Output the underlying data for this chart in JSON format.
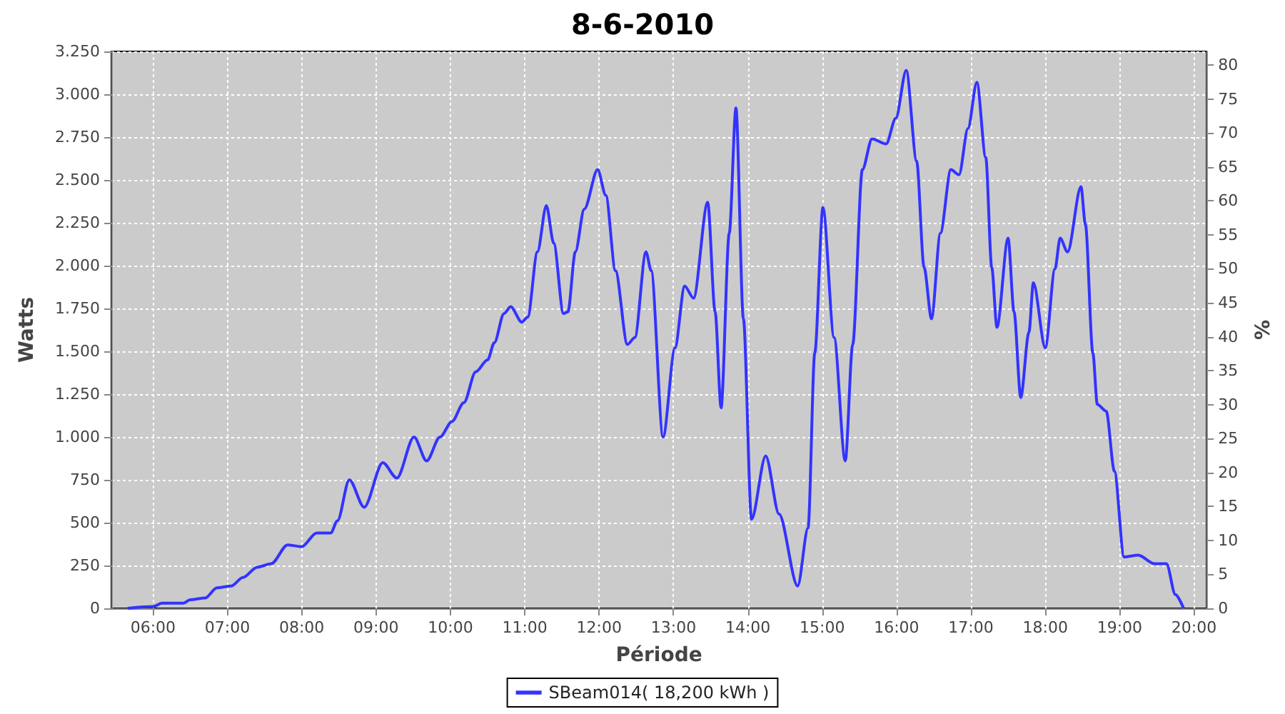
{
  "chart_data": {
    "type": "line",
    "title": "8-6-2010",
    "xlabel": "Période",
    "ylabel": "Watts",
    "y2label": "%",
    "xlim": [
      5.44,
      20.17
    ],
    "xticks": [
      {
        "value": 6,
        "label": "06:00"
      },
      {
        "value": 7,
        "label": "07:00"
      },
      {
        "value": 8,
        "label": "08:00"
      },
      {
        "value": 9,
        "label": "09:00"
      },
      {
        "value": 10,
        "label": "10:00"
      },
      {
        "value": 11,
        "label": "11:00"
      },
      {
        "value": 12,
        "label": "12:00"
      },
      {
        "value": 13,
        "label": "13:00"
      },
      {
        "value": 14,
        "label": "14:00"
      },
      {
        "value": 15,
        "label": "15:00"
      },
      {
        "value": 16,
        "label": "16:00"
      },
      {
        "value": 17,
        "label": "17:00"
      },
      {
        "value": 18,
        "label": "18:00"
      },
      {
        "value": 19,
        "label": "19:00"
      },
      {
        "value": 20,
        "label": "20:00"
      }
    ],
    "ylim": [
      0,
      3250
    ],
    "yticks": [
      0,
      250,
      500,
      750,
      {
        "value": 1000,
        "label": "1.000"
      },
      {
        "value": 1250,
        "label": "1.250"
      },
      {
        "value": 1500,
        "label": "1.500"
      },
      {
        "value": 1750,
        "label": "1.750"
      },
      {
        "value": 2000,
        "label": "2.000"
      },
      {
        "value": 2250,
        "label": "2.250"
      },
      {
        "value": 2500,
        "label": "2.500"
      },
      {
        "value": 2750,
        "label": "2.750"
      },
      {
        "value": 3000,
        "label": "3.000"
      },
      {
        "value": 3250,
        "label": "3.250"
      }
    ],
    "y2lim": [
      0,
      82
    ],
    "y2ticks": [
      0,
      5,
      10,
      15,
      20,
      25,
      30,
      35,
      40,
      45,
      50,
      55,
      60,
      65,
      70,
      75,
      80
    ],
    "grid": true,
    "legend": "bottom",
    "marker": "none",
    "line_style": "solid",
    "series": [
      {
        "name": "SBeam014( 18,200 kWh )",
        "color": "#3333ff",
        "x": [
          5.66,
          6.0,
          6.12,
          6.41,
          6.5,
          6.7,
          6.86,
          7.05,
          7.21,
          7.4,
          7.59,
          7.81,
          8.0,
          8.2,
          8.39,
          8.48,
          8.64,
          8.84,
          9.09,
          9.28,
          9.51,
          9.68,
          9.86,
          10.02,
          10.18,
          10.34,
          10.5,
          10.59,
          10.72,
          10.81,
          10.96,
          11.04,
          11.17,
          11.29,
          11.39,
          11.52,
          11.58,
          11.68,
          11.8,
          11.98,
          12.09,
          12.22,
          12.38,
          12.48,
          12.63,
          12.7,
          12.86,
          13.02,
          13.15,
          13.27,
          13.46,
          13.56,
          13.64,
          13.75,
          13.84,
          13.94,
          14.05,
          14.24,
          14.42,
          14.67,
          14.81,
          14.9,
          15.01,
          15.16,
          15.31,
          15.41,
          15.54,
          15.67,
          15.86,
          15.99,
          16.13,
          16.27,
          16.37,
          16.47,
          16.59,
          16.73,
          16.84,
          16.96,
          17.08,
          17.2,
          17.28,
          17.35,
          17.5,
          17.58,
          17.67,
          17.78,
          17.84,
          18.0,
          18.13,
          18.2,
          18.3,
          18.48,
          18.54,
          18.64,
          18.7,
          18.82,
          18.93,
          19.06,
          19.25,
          19.47,
          19.63,
          19.75,
          19.86
        ],
        "values": [
          0,
          10,
          30,
          30,
          50,
          60,
          120,
          130,
          180,
          240,
          260,
          370,
          360,
          440,
          440,
          510,
          750,
          590,
          850,
          760,
          1000,
          860,
          1000,
          1090,
          1200,
          1380,
          1450,
          1550,
          1720,
          1760,
          1670,
          1700,
          2080,
          2350,
          2130,
          1720,
          1730,
          2080,
          2330,
          2560,
          2410,
          1970,
          1540,
          1580,
          2080,
          1970,
          1000,
          1520,
          1880,
          1810,
          2370,
          1730,
          1170,
          2190,
          2920,
          1690,
          520,
          890,
          550,
          130,
          470,
          1490,
          2340,
          1580,
          860,
          1540,
          2560,
          2740,
          2710,
          2860,
          3140,
          2610,
          1990,
          1690,
          2190,
          2560,
          2530,
          2800,
          3070,
          2630,
          1990,
          1640,
          2160,
          1730,
          1230,
          1610,
          1900,
          1520,
          1980,
          2160,
          2080,
          2460,
          2240,
          1490,
          1190,
          1150,
          800,
          300,
          310,
          260,
          260,
          80,
          0
        ]
      }
    ]
  }
}
